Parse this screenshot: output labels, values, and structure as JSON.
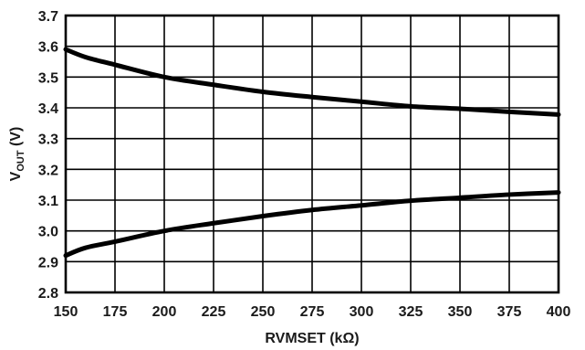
{
  "chart_data": {
    "type": "line",
    "xlabel": "RVMSET (kΩ)",
    "ylabel_main": "V",
    "ylabel_sub": "OUT",
    "ylabel_unit": " (V)",
    "xlim": [
      150,
      400
    ],
    "ylim": [
      2.8,
      3.7
    ],
    "x_ticks": [
      "150",
      "175",
      "200",
      "225",
      "250",
      "275",
      "300",
      "325",
      "350",
      "375",
      "400"
    ],
    "y_ticks": [
      "2.8",
      "2.9",
      "3.0",
      "3.1",
      "3.2",
      "3.3",
      "3.4",
      "3.5",
      "3.6",
      "3.7"
    ],
    "grid": true,
    "series": [
      {
        "x": [
          150,
          160,
          175,
          200,
          225,
          250,
          275,
          300,
          325,
          350,
          375,
          400
        ],
        "y": [
          3.59,
          3.565,
          3.54,
          3.5,
          3.475,
          3.452,
          3.435,
          3.42,
          3.405,
          3.397,
          3.387,
          3.378
        ]
      },
      {
        "x": [
          150,
          160,
          175,
          200,
          225,
          250,
          275,
          300,
          325,
          350,
          375,
          400
        ],
        "y": [
          2.92,
          2.945,
          2.965,
          3.0,
          3.025,
          3.048,
          3.068,
          3.083,
          3.098,
          3.108,
          3.118,
          3.125
        ]
      }
    ]
  }
}
